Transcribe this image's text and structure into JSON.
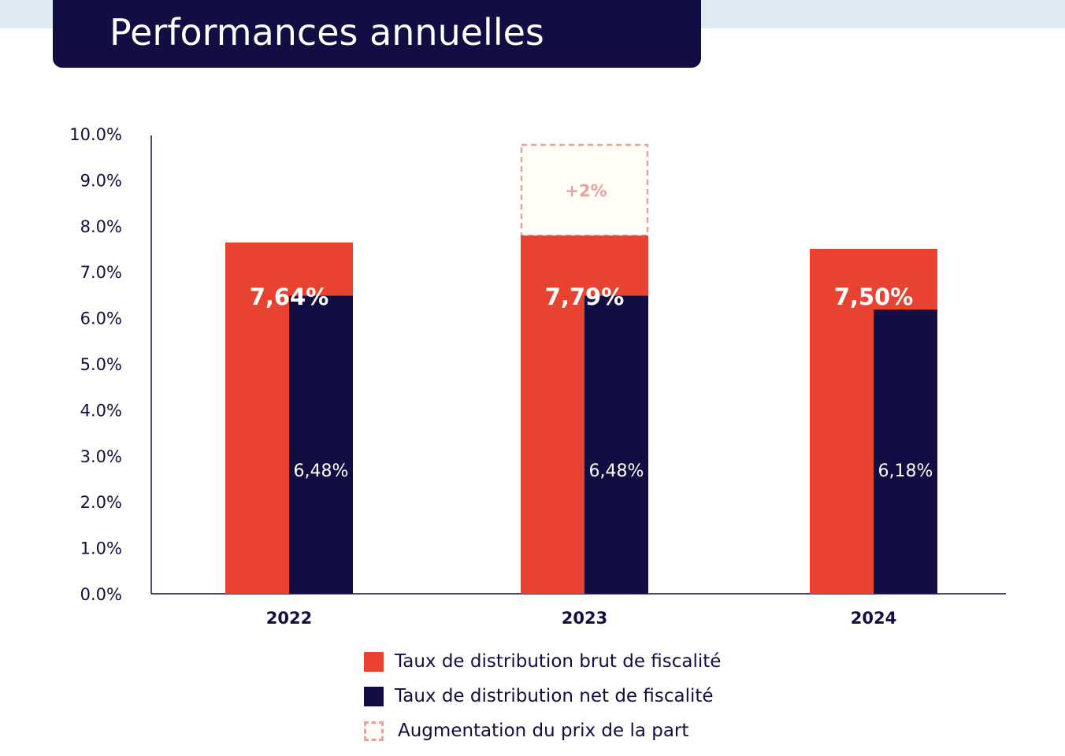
{
  "header": {
    "title": "Performances annuelles"
  },
  "colors": {
    "gross": "#e84330",
    "net": "#120d42",
    "increase_border": "#e8a39c",
    "increase_fill": "#fffdf6",
    "increase_text": "#e8a39c",
    "banner": "#120d42",
    "strip": "#deeaf3"
  },
  "chart_data": {
    "type": "bar",
    "categories": [
      "2022",
      "2023",
      "2024"
    ],
    "series": [
      {
        "name": "Taux de distribution brut de fiscalité",
        "values": [
          7.64,
          7.79,
          7.5
        ],
        "labels": [
          "7,64%",
          "7,79%",
          "7,50%"
        ]
      },
      {
        "name": "Taux de distribution net de fiscalité",
        "values": [
          6.48,
          6.48,
          6.18
        ],
        "labels": [
          "6,48%",
          "6,48%",
          "6,18%"
        ]
      }
    ],
    "increase": {
      "category": "2023",
      "label": "+2%",
      "name": "Augmentation du prix de la part"
    },
    "y_ticks": [
      "0.0%",
      "1.0%",
      "2.0%",
      "3.0%",
      "4.0%",
      "5.0%",
      "6.0%",
      "7.0%",
      "8.0%",
      "9.0%",
      "10.0%"
    ],
    "ylim": [
      0,
      10
    ],
    "grid": false,
    "legend_position": "bottom"
  },
  "legend": {
    "items": [
      "Taux de distribution brut de fiscalité",
      "Taux de distribution net de fiscalité",
      "Augmentation du prix de la part"
    ]
  }
}
